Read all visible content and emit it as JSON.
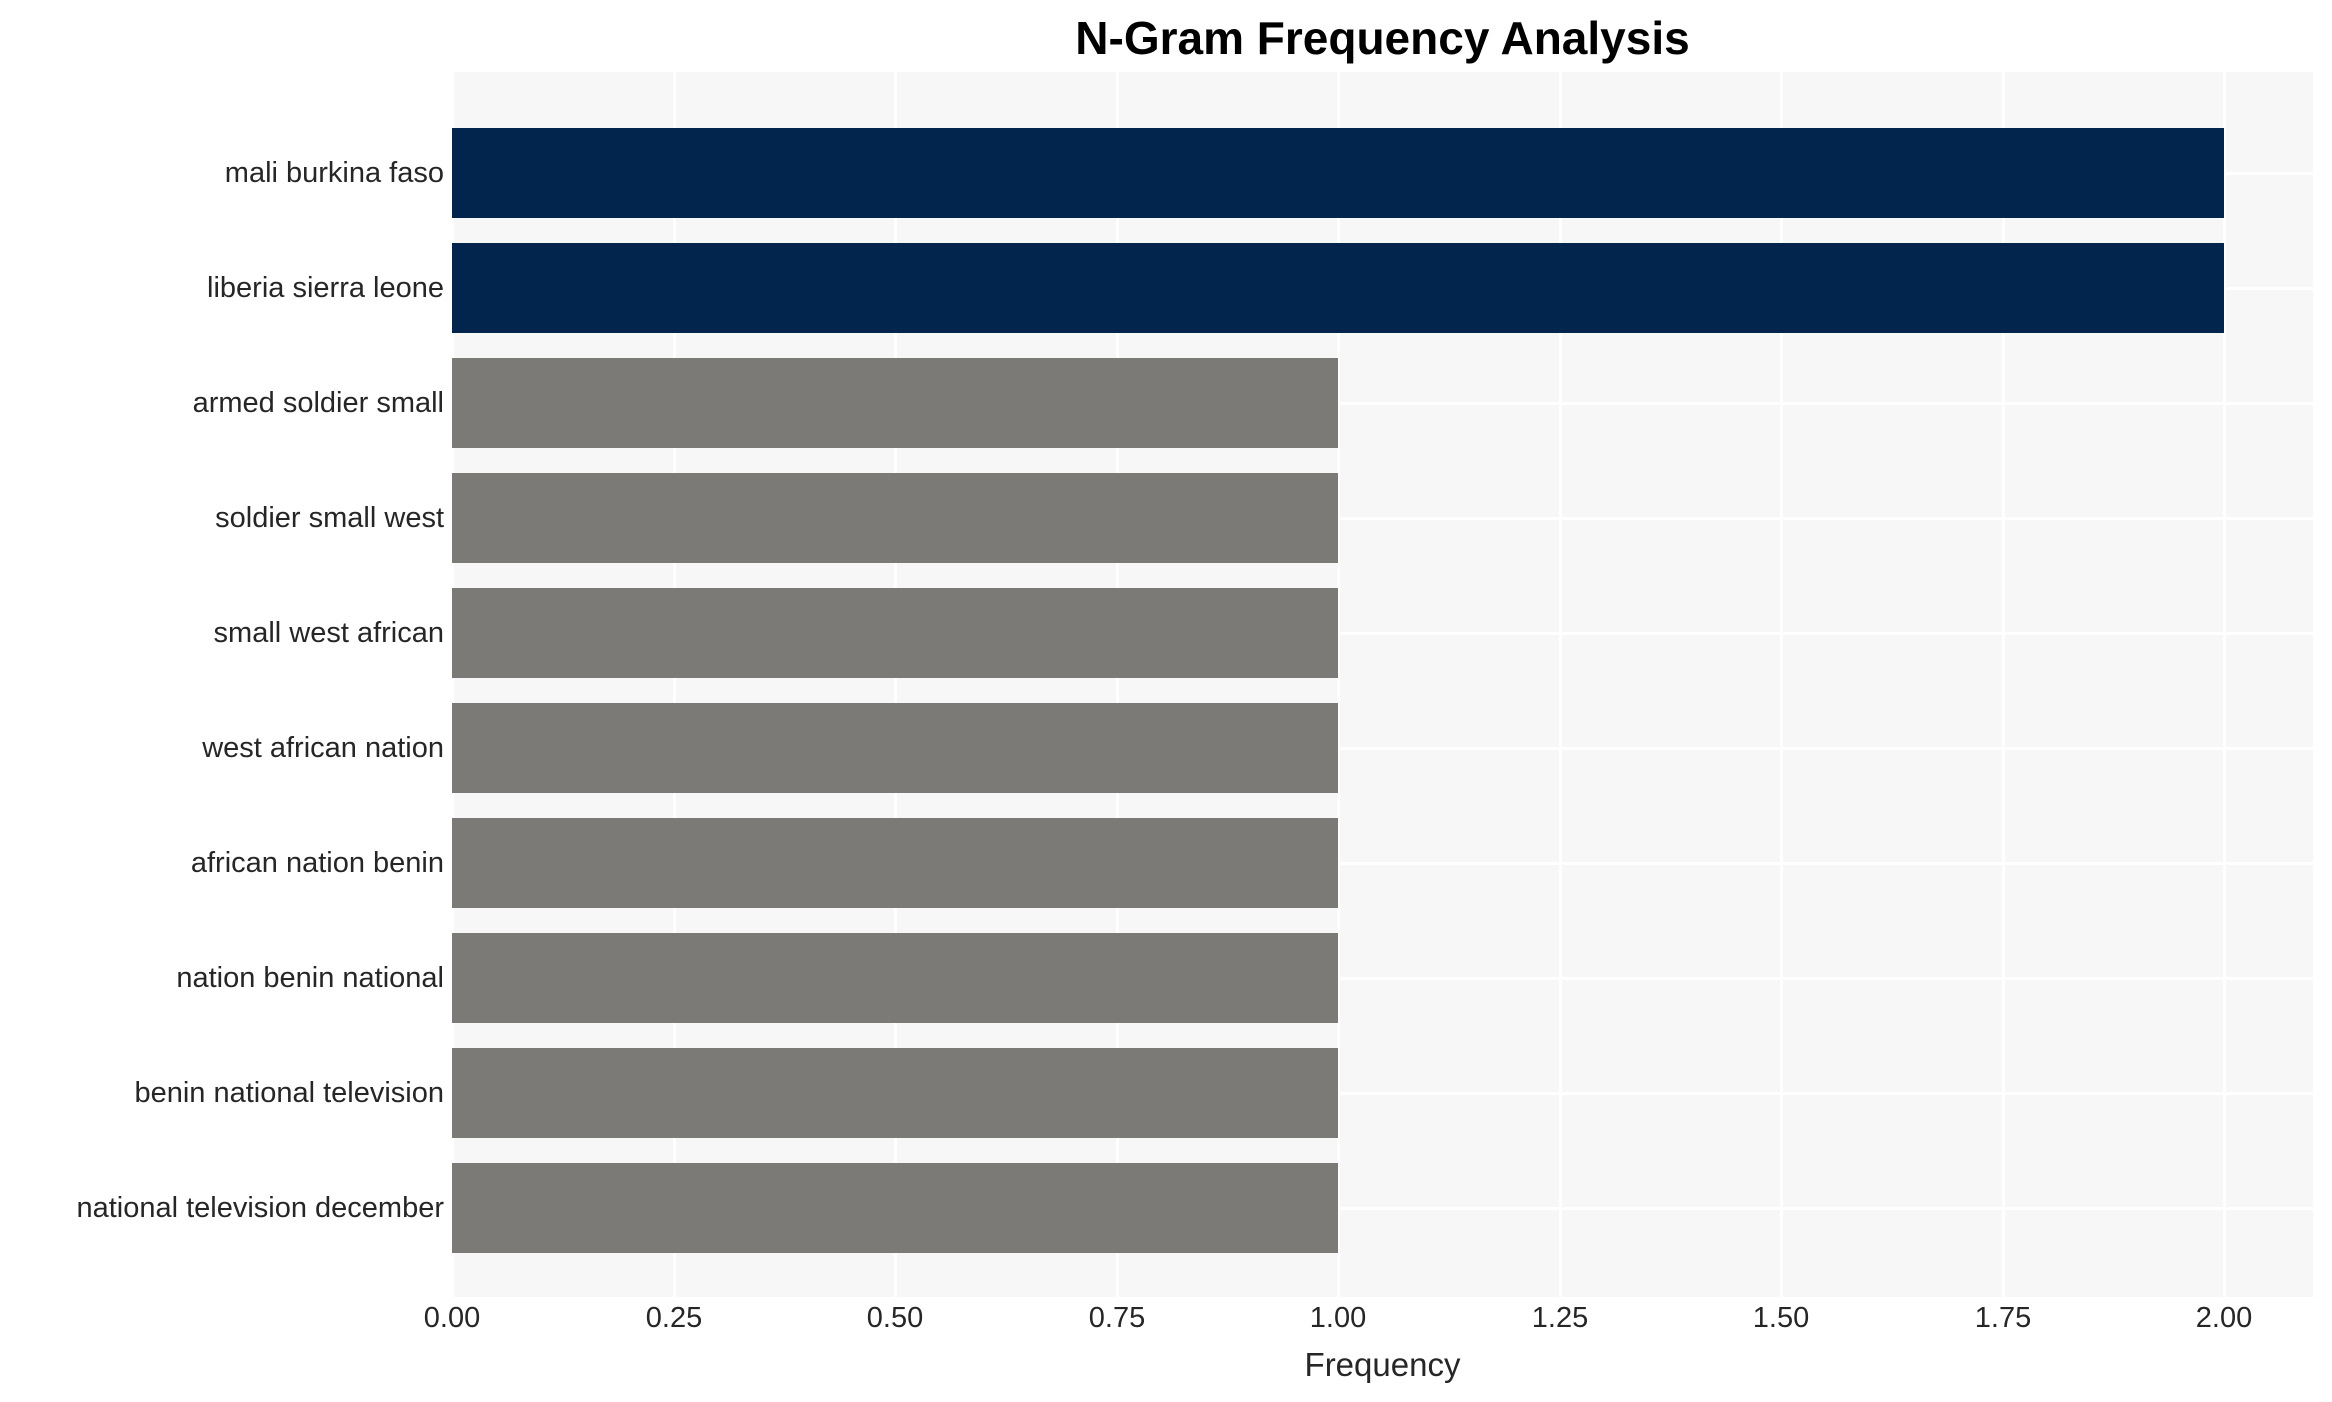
{
  "chart_data": {
    "type": "bar",
    "orientation": "horizontal",
    "title": "N-Gram Frequency Analysis",
    "xlabel": "Frequency",
    "ylabel": "",
    "categories": [
      "mali burkina faso",
      "liberia sierra leone",
      "armed soldier small",
      "soldier small west",
      "small west african",
      "west african nation",
      "african nation benin",
      "nation benin national",
      "benin national television",
      "national television december"
    ],
    "values": [
      2,
      2,
      1,
      1,
      1,
      1,
      1,
      1,
      1,
      1
    ],
    "bar_color_roles": [
      "highlight",
      "highlight",
      "default",
      "default",
      "default",
      "default",
      "default",
      "default",
      "default",
      "default"
    ],
    "colors": {
      "highlight": "#02254d",
      "default": "#7b7a77",
      "plot_background": "#f7f7f7",
      "grid": "#ffffff",
      "text": "#262626"
    },
    "xlim": [
      0,
      2.1
    ],
    "xticks": [
      0,
      0.25,
      0.5,
      0.75,
      1.0,
      1.25,
      1.5,
      1.75,
      2.0
    ],
    "xtick_labels": [
      "0.00",
      "0.25",
      "0.50",
      "0.75",
      "1.00",
      "1.25",
      "1.50",
      "1.75",
      "2.00"
    ],
    "grid": "on",
    "legend": "none"
  }
}
